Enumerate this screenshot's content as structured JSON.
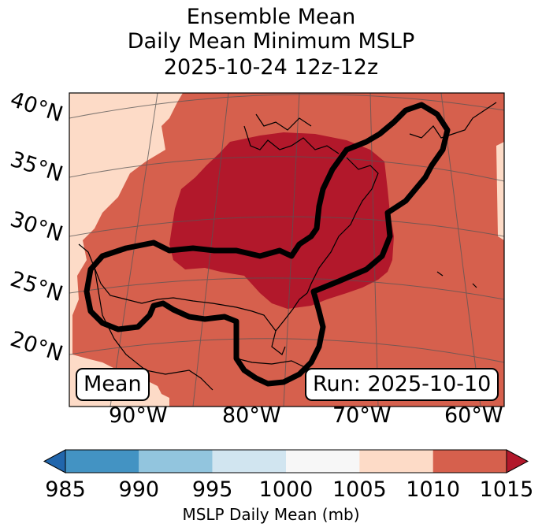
{
  "title": {
    "line1": "Ensemble Mean",
    "line2": "Daily Mean Minimum MSLP",
    "line3": "2025-10-24 12z-12z"
  },
  "map": {
    "lat_labels": [
      "40°N",
      "35°N",
      "30°N",
      "25°N",
      "20°N"
    ],
    "lon_labels": [
      "90°W",
      "80°W",
      "70°W",
      "60°W"
    ],
    "fill_colors": {
      "level_1005_1010": "#fddbc7",
      "level_1010_1015": "#d6604d",
      "level_above_1015": "#b2182b"
    },
    "contour_color": "#000000",
    "mean_label": "Mean",
    "run_label": "Run: 2025-10-10"
  },
  "colorbar": {
    "ticks": [
      "985",
      "990",
      "995",
      "1000",
      "1005",
      "1010",
      "1015"
    ],
    "colors": [
      "#2166ac",
      "#4393c3",
      "#92c5de",
      "#d1e5f0",
      "#f7f7f7",
      "#fddbc7",
      "#d6604d",
      "#b2182b"
    ],
    "label": "MSLP Daily Mean (mb)"
  }
}
